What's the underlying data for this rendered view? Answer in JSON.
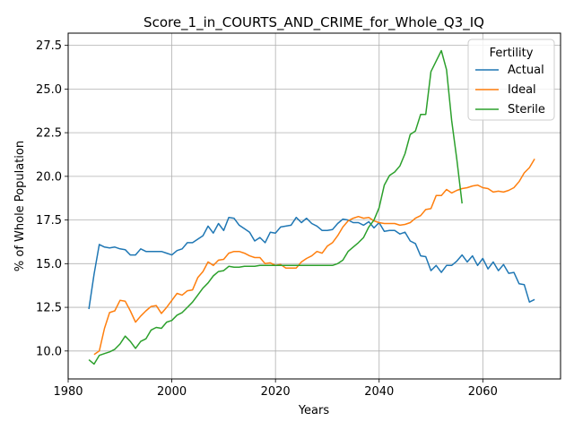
{
  "chart_data": {
    "type": "line",
    "title": "Score_1_in_COURTS_AND_CRIME_for_Whole_Q3_IQ",
    "xlabel": "Years",
    "ylabel": "% of Whole Population",
    "xlim": [
      1980,
      2075
    ],
    "ylim": [
      8.4,
      28.2
    ],
    "xticks": [
      1980,
      2000,
      2020,
      2040,
      2060
    ],
    "yticks": [
      10.0,
      12.5,
      15.0,
      17.5,
      20.0,
      22.5,
      25.0,
      27.5
    ],
    "xtick_labels": [
      "1980",
      "2000",
      "2020",
      "2040",
      "2060"
    ],
    "ytick_labels": [
      "10.0",
      "12.5",
      "15.0",
      "17.5",
      "20.0",
      "22.5",
      "25.0",
      "27.5"
    ],
    "grid": true,
    "legend": {
      "title": "Fertility",
      "placement": "top-right"
    },
    "series": [
      {
        "name": "Actual",
        "color": "#1f77b4",
        "x": [
          1984,
          1985,
          1986,
          1987,
          1988,
          1989,
          1990,
          1991,
          1992,
          1993,
          1994,
          1995,
          1996,
          1997,
          1998,
          1999,
          2000,
          2001,
          2002,
          2003,
          2004,
          2005,
          2006,
          2007,
          2008,
          2009,
          2010,
          2011,
          2012,
          2013,
          2014,
          2015,
          2016,
          2017,
          2018,
          2019,
          2020,
          2021,
          2022,
          2023,
          2024,
          2025,
          2026,
          2027,
          2028,
          2029,
          2030,
          2031,
          2032,
          2033,
          2034,
          2035,
          2036,
          2037,
          2038,
          2039,
          2040,
          2041,
          2042,
          2043,
          2044,
          2045,
          2046,
          2047,
          2048,
          2049,
          2050,
          2051,
          2052,
          2053,
          2054,
          2055,
          2056,
          2057,
          2058,
          2059,
          2060,
          2061,
          2062,
          2063,
          2064,
          2065,
          2066,
          2067,
          2068,
          2069,
          2070
        ],
        "y": [
          12.4,
          14.4,
          16.1,
          15.95,
          15.9,
          15.95,
          15.85,
          15.8,
          15.5,
          15.5,
          15.85,
          15.7,
          15.7,
          15.7,
          15.7,
          15.6,
          15.5,
          15.75,
          15.85,
          16.2,
          16.2,
          16.4,
          16.6,
          17.15,
          16.75,
          17.3,
          16.9,
          17.65,
          17.6,
          17.2,
          17.0,
          16.8,
          16.3,
          16.5,
          16.2,
          16.8,
          16.75,
          17.1,
          17.15,
          17.2,
          17.65,
          17.35,
          17.6,
          17.3,
          17.15,
          16.9,
          16.9,
          16.95,
          17.3,
          17.55,
          17.5,
          17.35,
          17.35,
          17.2,
          17.4,
          17.05,
          17.35,
          16.85,
          16.9,
          16.9,
          16.7,
          16.8,
          16.3,
          16.15,
          15.45,
          15.4,
          14.6,
          14.9,
          14.5,
          14.9,
          14.9,
          15.15,
          15.5,
          15.1,
          15.45,
          14.9,
          15.3,
          14.7,
          15.1,
          14.6,
          14.95,
          14.45,
          14.5,
          13.85,
          13.8,
          12.8,
          12.95
        ]
      },
      {
        "name": "Ideal",
        "color": "#ff7f0e",
        "x": [
          1985,
          1986,
          1987,
          1988,
          1989,
          1990,
          1991,
          1992,
          1993,
          1994,
          1995,
          1996,
          1997,
          1998,
          1999,
          2000,
          2001,
          2002,
          2003,
          2004,
          2005,
          2006,
          2007,
          2008,
          2009,
          2010,
          2011,
          2012,
          2013,
          2014,
          2015,
          2016,
          2017,
          2018,
          2019,
          2020,
          2021,
          2022,
          2023,
          2024,
          2025,
          2026,
          2027,
          2028,
          2029,
          2030,
          2031,
          2032,
          2033,
          2034,
          2035,
          2036,
          2037,
          2038,
          2039,
          2040,
          2041,
          2042,
          2043,
          2044,
          2045,
          2046,
          2047,
          2048,
          2049,
          2050,
          2051,
          2052,
          2053,
          2054,
          2055,
          2056,
          2057,
          2058,
          2059,
          2060,
          2061,
          2062,
          2063,
          2064,
          2065,
          2066,
          2067,
          2068,
          2069,
          2070
        ],
        "y": [
          9.8,
          10.0,
          11.3,
          12.2,
          12.3,
          12.9,
          12.85,
          12.3,
          11.65,
          12.0,
          12.3,
          12.55,
          12.6,
          12.15,
          12.5,
          12.9,
          13.3,
          13.2,
          13.45,
          13.5,
          14.2,
          14.55,
          15.1,
          14.9,
          15.2,
          15.25,
          15.6,
          15.7,
          15.7,
          15.6,
          15.45,
          15.35,
          15.35,
          15.0,
          15.05,
          14.9,
          14.95,
          14.75,
          14.75,
          14.75,
          15.1,
          15.3,
          15.45,
          15.7,
          15.6,
          16.0,
          16.2,
          16.6,
          17.1,
          17.45,
          17.6,
          17.7,
          17.6,
          17.65,
          17.45,
          17.35,
          17.3,
          17.3,
          17.3,
          17.2,
          17.25,
          17.35,
          17.6,
          17.75,
          18.1,
          18.15,
          18.9,
          18.9,
          19.25,
          19.05,
          19.2,
          19.3,
          19.35,
          19.45,
          19.5,
          19.35,
          19.3,
          19.1,
          19.15,
          19.1,
          19.2,
          19.35,
          19.7,
          20.2,
          20.5,
          21.0
        ]
      },
      {
        "name": "Sterile",
        "color": "#2ca02c",
        "x": [
          1984,
          1985,
          1986,
          1987,
          1988,
          1989,
          1990,
          1991,
          1992,
          1993,
          1994,
          1995,
          1996,
          1997,
          1998,
          1999,
          2000,
          2001,
          2002,
          2003,
          2004,
          2005,
          2006,
          2007,
          2008,
          2009,
          2010,
          2011,
          2012,
          2013,
          2014,
          2015,
          2016,
          2017,
          2018,
          2019,
          2020,
          2021,
          2022,
          2023,
          2024,
          2025,
          2026,
          2027,
          2028,
          2029,
          2030,
          2031,
          2032,
          2033,
          2034,
          2035,
          2036,
          2037,
          2038,
          2039,
          2040,
          2041,
          2042,
          2043,
          2044,
          2045,
          2046,
          2047,
          2048,
          2049,
          2050,
          2051,
          2052,
          2053,
          2054,
          2055,
          2056,
          2057
        ],
        "y": [
          9.5,
          9.25,
          9.75,
          9.85,
          9.95,
          10.1,
          10.4,
          10.85,
          10.55,
          10.15,
          10.55,
          10.7,
          11.2,
          11.35,
          11.3,
          11.65,
          11.75,
          12.05,
          12.2,
          12.5,
          12.8,
          13.2,
          13.6,
          13.9,
          14.3,
          14.55,
          14.6,
          14.85,
          14.8,
          14.8,
          14.85,
          14.85,
          14.85,
          14.9,
          14.9,
          14.9,
          14.9,
          14.9,
          14.9,
          14.9,
          14.9,
          14.9,
          14.9,
          14.9,
          14.9,
          14.9,
          14.9,
          14.9,
          15.0,
          15.2,
          15.7,
          15.95,
          16.2,
          16.5,
          17.1,
          17.5,
          18.2,
          19.5,
          20.05,
          20.25,
          20.6,
          21.3,
          22.4,
          22.6,
          23.55,
          23.55,
          26.0,
          26.6,
          27.2,
          26.1,
          23.2,
          20.95,
          18.45,
          null
        ]
      }
    ]
  }
}
